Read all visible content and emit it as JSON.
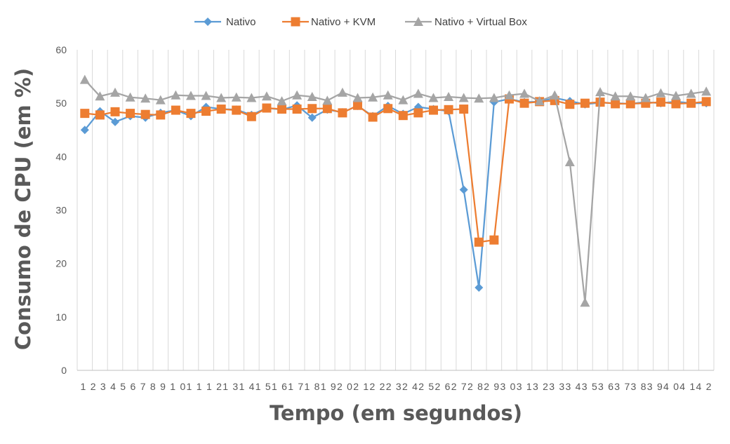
{
  "chart_data": {
    "type": "line",
    "title": "",
    "xlabel": "Tempo (em segundos)",
    "ylabel": "Consumo de CPU (em %)",
    "ylim": [
      0,
      60
    ],
    "yticks": [
      0,
      10,
      20,
      30,
      40,
      50,
      60
    ],
    "grid": "vertical",
    "legend_position": "top",
    "tick_labels": [
      "1",
      "2",
      "3",
      "4",
      "5",
      "6",
      "7",
      "8",
      "9",
      "10",
      "11",
      "12",
      "13",
      "14",
      "15",
      "16",
      "17",
      "18",
      "19",
      "20",
      "21",
      "22",
      "23",
      "24",
      "25",
      "26",
      "27",
      "28",
      "29",
      "30",
      "31",
      "32",
      "33",
      "34",
      "35",
      "36",
      "37",
      "38",
      "39",
      "40",
      "41",
      "42"
    ],
    "tick_labels_display": "1 2 3 4 5 6 7 8 9 1 01 1 1 21 31 41 51 61 71 81 92 02 12 22 32 42 52 62 72 82 93 03 13 23 33 43 53 63 73 83 94 04 14 2",
    "series": [
      {
        "name": "Nativo",
        "color": "#5b9bd5",
        "marker": "diamond",
        "values": [
          45.0,
          48.5,
          46.5,
          47.6,
          47.3,
          48.2,
          48.7,
          47.6,
          49.3,
          48.9,
          48.8,
          47.8,
          49.1,
          48.8,
          49.6,
          47.3,
          48.8,
          48.3,
          49.5,
          47.6,
          49.5,
          48.0,
          49.3,
          48.9,
          48.5,
          33.8,
          15.5,
          50.2,
          50.8,
          50.2,
          50.3,
          51.0,
          50.4,
          49.8,
          50.1,
          50.0,
          49.9,
          50.2,
          50.0,
          50.3,
          50.0,
          50.0
        ]
      },
      {
        "name": "Nativo + KVM",
        "color": "#ed7d31",
        "marker": "square",
        "values": [
          48.1,
          47.8,
          48.4,
          48.1,
          47.9,
          47.8,
          48.7,
          48.1,
          48.5,
          48.9,
          48.7,
          47.5,
          49.1,
          48.9,
          48.9,
          49.0,
          49.0,
          48.2,
          49.6,
          47.4,
          49.0,
          47.7,
          48.2,
          48.7,
          48.8,
          48.9,
          24.0,
          24.4,
          50.8,
          50.0,
          50.3,
          50.5,
          49.8,
          50.0,
          50.2,
          49.9,
          49.9,
          50.0,
          50.2,
          49.9,
          50.0,
          50.3
        ]
      },
      {
        "name": "Nativo + Virtual Box",
        "color": "#a5a5a5",
        "marker": "triangle",
        "values": [
          54.4,
          51.3,
          52.0,
          51.1,
          50.9,
          50.6,
          51.5,
          51.4,
          51.4,
          51.0,
          51.1,
          51.0,
          51.3,
          50.4,
          51.5,
          51.2,
          50.5,
          52.0,
          51.0,
          51.1,
          51.5,
          50.6,
          51.8,
          51.0,
          51.2,
          51.0,
          50.9,
          51.0,
          51.5,
          51.8,
          50.4,
          51.5,
          39.0,
          12.7,
          52.1,
          51.3,
          51.3,
          51.0,
          51.9,
          51.4,
          51.8,
          52.2
        ]
      }
    ]
  }
}
